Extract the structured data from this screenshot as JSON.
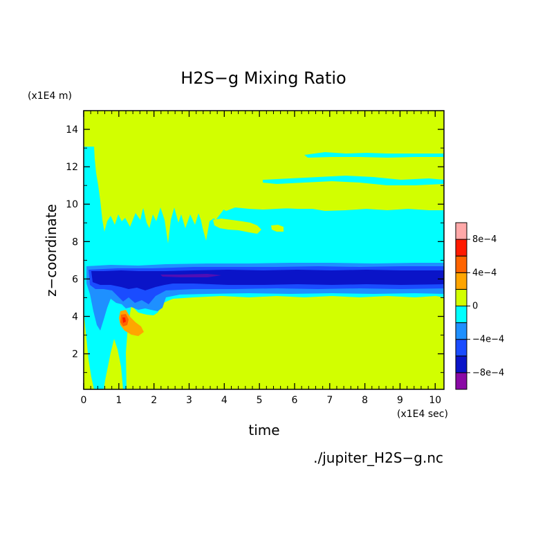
{
  "chart_data": {
    "type": "heatmap",
    "title": "H2S−g Mixing Ratio",
    "xlabel": "time",
    "ylabel": "z−coordinate",
    "x_unit": "(x1E4 sec)",
    "y_unit": "(x1E4 m)",
    "source_file": "./jupiter_H2S−g.nc",
    "xlim": [
      0,
      10.25
    ],
    "ylim": [
      0.1,
      15
    ],
    "x_ticks": [
      0,
      1,
      2,
      3,
      4,
      5,
      6,
      7,
      8,
      9,
      10
    ],
    "y_ticks": [
      2,
      4,
      6,
      8,
      10,
      12,
      14
    ],
    "colorbar": {
      "levels": [
        "-1e-3",
        "-8e-4",
        "-6e-4",
        "-4e-4",
        "-2e-4",
        "0",
        "2e-4",
        "4e-4",
        "6e-4",
        "8e-4",
        "1e-3"
      ],
      "labels": [
        "−8e−4",
        "−4e−4",
        "0",
        "4e−4",
        "8e−4"
      ],
      "colors": [
        "#8a0aa5",
        "#0a14c8",
        "#1a4cff",
        "#1e90ff",
        "#00ffff",
        "#d2ff00",
        "#ffa500",
        "#ff6400",
        "#ff1a00",
        "#ffa8a8"
      ]
    },
    "background_level": "0 to 2e-4",
    "regions": [
      {
        "name": "upper-cyan-band",
        "level": "-2e-4 to 0",
        "x_range": [
          0,
          10.25
        ],
        "z_range": [
          5,
          9.5
        ]
      },
      {
        "name": "strong-negative-core",
        "level": "-1e-3 to -8e-4",
        "x_range": [
          0.3,
          10.25
        ],
        "z_range": [
          5.7,
          6.5
        ]
      },
      {
        "name": "positive-patch",
        "level": "4e-4 to 8e-4",
        "x_range": [
          0.95,
          1.7
        ],
        "z_range": [
          3.0,
          4.1
        ]
      }
    ]
  }
}
